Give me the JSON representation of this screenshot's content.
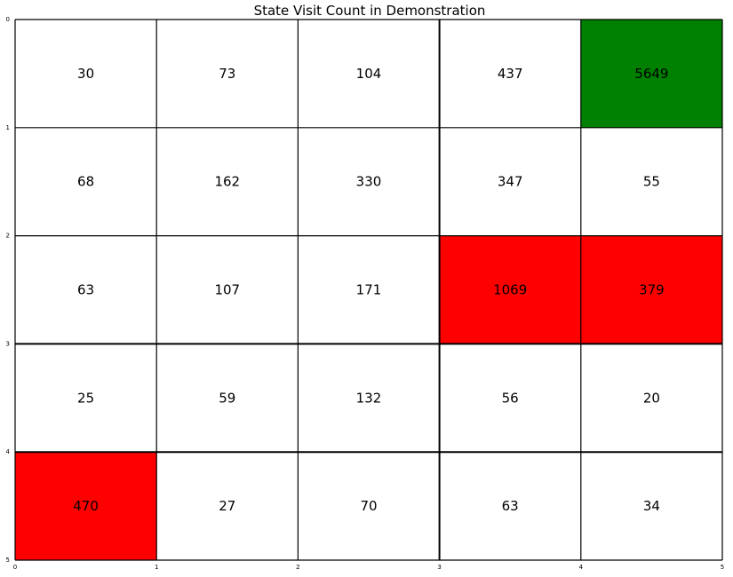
{
  "chart_data": {
    "type": "heatmap",
    "title": "State Visit Count in Demonstration",
    "xlabel": "",
    "ylabel": "",
    "xlim": [
      0,
      5
    ],
    "ylim": [
      5,
      0
    ],
    "x_ticks": [
      "0",
      "1",
      "2",
      "3",
      "4",
      "5"
    ],
    "y_ticks": [
      "0",
      "1",
      "2",
      "3",
      "4",
      "5"
    ],
    "grid": true,
    "values": [
      [
        30,
        73,
        104,
        437,
        5649
      ],
      [
        68,
        162,
        330,
        347,
        55
      ],
      [
        63,
        107,
        171,
        1069,
        379
      ],
      [
        25,
        59,
        132,
        56,
        20
      ],
      [
        470,
        27,
        70,
        63,
        34
      ]
    ],
    "cell_colors": [
      [
        "#ffffff",
        "#ffffff",
        "#ffffff",
        "#ffffff",
        "#008000"
      ],
      [
        "#ffffff",
        "#ffffff",
        "#ffffff",
        "#ffffff",
        "#ffffff"
      ],
      [
        "#ffffff",
        "#ffffff",
        "#ffffff",
        "#ff0000",
        "#ff0000"
      ],
      [
        "#ffffff",
        "#ffffff",
        "#ffffff",
        "#ffffff",
        "#ffffff"
      ],
      [
        "#ff0000",
        "#ffffff",
        "#ffffff",
        "#ffffff",
        "#ffffff"
      ]
    ]
  }
}
